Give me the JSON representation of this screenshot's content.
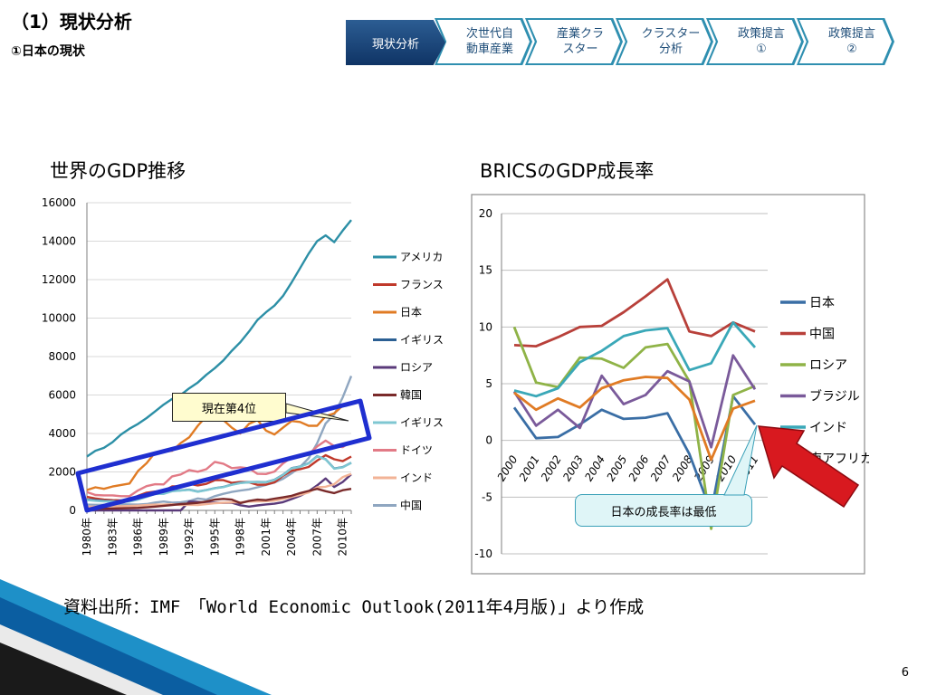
{
  "header": {
    "title": "（1）現状分析",
    "subtitle": "①日本の現状"
  },
  "nav": {
    "active": "現状分析",
    "steps": [
      "次世代自\n動車産業",
      "産業クラ\nスター",
      "クラスター\n分析",
      "政策提言\n①",
      "政策提言\n②"
    ]
  },
  "left_chart_title": "世界のGDP推移",
  "right_chart_title": "BRICSのGDP成長率",
  "callouts": {
    "left": "現在第4位",
    "right": "日本の成長率は最低"
  },
  "source": "資料出所：IMF　「World Economic Outlook(2011年4月版)」より作成",
  "page_number": "6",
  "colors": {
    "nav_active": "#1f4e79",
    "nav_step": "#2f8fb0",
    "highlight_box": "#1f2fd0",
    "arrow": "#d8191f"
  },
  "chart_data": [
    {
      "type": "line",
      "x": [
        "1980年",
        "1981年",
        "1982年",
        "1983年",
        "1984年",
        "1985年",
        "1986年",
        "1987年",
        "1988年",
        "1989年",
        "1990年",
        "1991年",
        "1992年",
        "1993年",
        "1994年",
        "1995年",
        "1996年",
        "1997年",
        "1998年",
        "1999年",
        "2000年",
        "2001年",
        "2002年",
        "2003年",
        "2004年",
        "2005年",
        "2006年",
        "2007年",
        "2008年",
        "2009年",
        "2010年",
        "2011年"
      ],
      "x_tick_labels": [
        "1980年",
        "1983年",
        "1986年",
        "1989年",
        "1992年",
        "1995年",
        "1998年",
        "2001年",
        "2004年",
        "2007年",
        "2010年"
      ],
      "ylim": [
        0,
        16000
      ],
      "y_ticks": [
        0,
        2000,
        4000,
        6000,
        8000,
        10000,
        12000,
        14000,
        16000
      ],
      "legend": "right",
      "series": [
        {
          "name": "アメリカ",
          "color": "#2c8fa6",
          "values": [
            2800,
            3100,
            3250,
            3550,
            3950,
            4250,
            4500,
            4800,
            5150,
            5500,
            5800,
            6000,
            6350,
            6650,
            7050,
            7400,
            7800,
            8300,
            8750,
            9300,
            9900,
            10300,
            10650,
            11150,
            11850,
            12600,
            13350,
            14000,
            14300,
            13950,
            14550,
            15100
          ]
        },
        {
          "name": "フランス",
          "color": "#c0392b",
          "values": [
            700,
            620,
            560,
            530,
            520,
            540,
            760,
            920,
            980,
            1010,
            1250,
            1250,
            1380,
            1300,
            1380,
            1570,
            1570,
            1430,
            1480,
            1460,
            1330,
            1340,
            1460,
            1800,
            2060,
            2140,
            2260,
            2590,
            2870,
            2660,
            2560,
            2800
          ]
        },
        {
          "name": "日本",
          "color": "#e07b24",
          "values": [
            1060,
            1200,
            1120,
            1240,
            1320,
            1400,
            2050,
            2450,
            3010,
            3050,
            3100,
            3500,
            3800,
            4400,
            4900,
            5300,
            4700,
            4300,
            4000,
            4500,
            4700,
            4150,
            3950,
            4300,
            4650,
            4600,
            4400,
            4400,
            4900,
            5050,
            5450,
            5600
          ]
        },
        {
          "name": "イギリス",
          "color": "#2b5f93",
          "values": [
            560,
            530,
            500,
            480,
            460,
            480,
            580,
            720,
            860,
            870,
            1010,
            1040,
            1080,
            980,
            1060,
            1160,
            1220,
            1340,
            1430,
            1470,
            1480,
            1470,
            1590,
            1850,
            2200,
            2280,
            2450,
            2820,
            2660,
            2180,
            2250,
            2480
          ]
        },
        {
          "name": "ロシア",
          "color": "#5a3a7a",
          "values": [
            0,
            0,
            0,
            0,
            0,
            0,
            0,
            0,
            0,
            0,
            0,
            0,
            460,
            440,
            400,
            400,
            390,
            400,
            270,
            200,
            260,
            310,
            350,
            430,
            590,
            760,
            990,
            1300,
            1660,
            1220,
            1480,
            1880
          ]
        },
        {
          "name": "韓国",
          "color": "#7a2a2a",
          "values": [
            70,
            80,
            90,
            100,
            110,
            120,
            130,
            160,
            200,
            240,
            280,
            330,
            360,
            390,
            460,
            560,
            600,
            560,
            380,
            490,
            560,
            530,
            610,
            680,
            760,
            900,
            1010,
            1120,
            1000,
            900,
            1050,
            1120
          ]
        },
        {
          "name": "イギリス",
          "color": "#7fc7d2",
          "values": [
            540,
            500,
            470,
            460,
            440,
            460,
            560,
            700,
            850,
            860,
            1000,
            1030,
            1070,
            970,
            1050,
            1150,
            1210,
            1330,
            1420,
            1460,
            1470,
            1460,
            1580,
            1840,
            2190,
            2270,
            2440,
            2810,
            2650,
            2170,
            2240,
            2470
          ]
        },
        {
          "name": "ドイツ",
          "color": "#e27a86",
          "values": [
            950,
            800,
            780,
            780,
            740,
            740,
            1040,
            1260,
            1360,
            1350,
            1770,
            1870,
            2100,
            2010,
            2140,
            2520,
            2430,
            2200,
            2240,
            2190,
            1900,
            1890,
            2020,
            2440,
            2760,
            2790,
            2920,
            3320,
            3630,
            3340,
            3290,
            3580
          ]
        },
        {
          "name": "インド",
          "color": "#f2b396",
          "values": [
            190,
            200,
            200,
            220,
            210,
            230,
            250,
            280,
            300,
            300,
            320,
            280,
            290,
            280,
            330,
            370,
            400,
            420,
            420,
            460,
            470,
            480,
            510,
            600,
            700,
            810,
            930,
            1200,
            1230,
            1360,
            1730,
            1900
          ]
        },
        {
          "name": "中国",
          "color": "#8fa6c0",
          "values": [
            300,
            290,
            290,
            310,
            320,
            310,
            300,
            330,
            410,
            460,
            400,
            420,
            490,
            620,
            560,
            740,
            860,
            960,
            1030,
            1090,
            1200,
            1320,
            1450,
            1640,
            1930,
            2260,
            2710,
            3490,
            4520,
            4990,
            5880,
            6990
          ]
        }
      ]
    },
    {
      "type": "line",
      "x": [
        "2000",
        "2001",
        "2002",
        "2003",
        "2004",
        "2005",
        "2006",
        "2007",
        "2008",
        "2009",
        "2010",
        "2011"
      ],
      "ylim": [
        -10,
        20
      ],
      "y_ticks": [
        -10,
        -5,
        0,
        5,
        10,
        15,
        20
      ],
      "legend": "right",
      "series": [
        {
          "name": "日本",
          "color": "#3a6ea5",
          "values": [
            2.9,
            0.2,
            0.3,
            1.4,
            2.7,
            1.9,
            2.0,
            2.4,
            -1.2,
            -6.3,
            3.9,
            1.4
          ]
        },
        {
          "name": "中国",
          "color": "#b8403a",
          "values": [
            8.4,
            8.3,
            9.1,
            10.0,
            10.1,
            11.3,
            12.7,
            14.2,
            9.6,
            9.2,
            10.4,
            9.6
          ]
        },
        {
          "name": "ロシア",
          "color": "#8fb347",
          "values": [
            10.0,
            5.1,
            4.7,
            7.3,
            7.2,
            6.4,
            8.2,
            8.5,
            5.2,
            -7.8,
            4.0,
            4.8
          ]
        },
        {
          "name": "ブラジル",
          "color": "#7a5a9a",
          "values": [
            4.3,
            1.3,
            2.7,
            1.1,
            5.7,
            3.2,
            4.0,
            6.1,
            5.2,
            -0.6,
            7.5,
            4.5
          ]
        },
        {
          "name": "インド",
          "color": "#3aa8b8",
          "values": [
            4.4,
            3.9,
            4.6,
            6.9,
            7.9,
            9.2,
            9.7,
            9.9,
            6.2,
            6.8,
            10.4,
            8.2
          ]
        },
        {
          "name": "南アフリカ",
          "color": "#e07b24",
          "values": [
            4.2,
            2.7,
            3.7,
            2.9,
            4.6,
            5.3,
            5.6,
            5.5,
            3.6,
            -1.7,
            2.8,
            3.5
          ]
        }
      ]
    }
  ]
}
